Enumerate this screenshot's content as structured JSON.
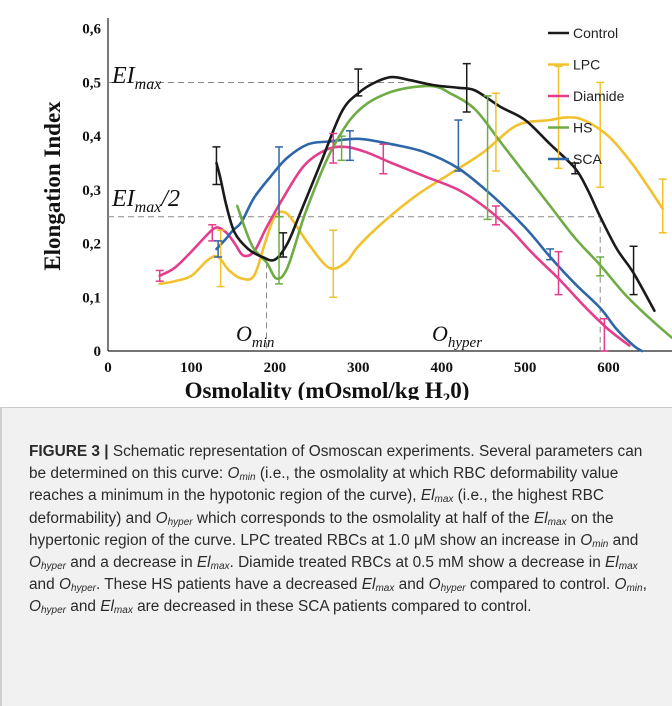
{
  "chart_data": {
    "type": "line",
    "xlabel": "Osmolality (mOsmol/kg H",
    "xlabel_sub": "2",
    "xlabel_end": "0)",
    "ylabel": "Elongation Index",
    "xlim": [
      0,
      730
    ],
    "ylim": [
      0,
      0.62
    ],
    "x_ticks": [
      "0",
      "100",
      "200",
      "300",
      "400",
      "500",
      "600"
    ],
    "y_ticks": [
      "0",
      "0,1",
      "0,2",
      "0,3",
      "0,4",
      "0,5",
      "0,6"
    ],
    "grid": false,
    "legend_position": "top-right",
    "series": [
      {
        "name": "Control",
        "color": "#1a1a1a",
        "points": [
          [
            130,
            0.35
          ],
          [
            135,
            0.32
          ],
          [
            142,
            0.27
          ],
          [
            152,
            0.22
          ],
          [
            168,
            0.19
          ],
          [
            185,
            0.175
          ],
          [
            200,
            0.17
          ],
          [
            215,
            0.2
          ],
          [
            230,
            0.255
          ],
          [
            255,
            0.35
          ],
          [
            280,
            0.445
          ],
          [
            300,
            0.48
          ],
          [
            320,
            0.5
          ],
          [
            340,
            0.51
          ],
          [
            360,
            0.505
          ],
          [
            390,
            0.495
          ],
          [
            420,
            0.49
          ],
          [
            440,
            0.485
          ],
          [
            470,
            0.455
          ],
          [
            500,
            0.43
          ],
          [
            530,
            0.385
          ],
          [
            560,
            0.34
          ],
          [
            575,
            0.3
          ],
          [
            590,
            0.25
          ],
          [
            610,
            0.19
          ],
          [
            630,
            0.145
          ],
          [
            655,
            0.075
          ]
        ],
        "error_bars": [
          [
            130,
            0.31,
            0.38
          ],
          [
            210,
            0.175,
            0.22
          ],
          [
            300,
            0.475,
            0.525
          ],
          [
            430,
            0.445,
            0.535
          ],
          [
            560,
            0.33,
            0.35
          ],
          [
            630,
            0.105,
            0.195
          ]
        ]
      },
      {
        "name": "LPC",
        "color": "#f2c12e",
        "points": [
          [
            62,
            0.125
          ],
          [
            80,
            0.13
          ],
          [
            100,
            0.14
          ],
          [
            120,
            0.17
          ],
          [
            132,
            0.175
          ],
          [
            145,
            0.15
          ],
          [
            160,
            0.135
          ],
          [
            175,
            0.14
          ],
          [
            188,
            0.2
          ],
          [
            200,
            0.25
          ],
          [
            215,
            0.255
          ],
          [
            240,
            0.2
          ],
          [
            265,
            0.155
          ],
          [
            285,
            0.165
          ],
          [
            300,
            0.195
          ],
          [
            330,
            0.24
          ],
          [
            370,
            0.29
          ],
          [
            410,
            0.33
          ],
          [
            450,
            0.37
          ],
          [
            490,
            0.42
          ],
          [
            530,
            0.43
          ],
          [
            550,
            0.435
          ],
          [
            570,
            0.43
          ],
          [
            600,
            0.4
          ],
          [
            630,
            0.345
          ],
          [
            665,
            0.265
          ]
        ],
        "error_bars": [
          [
            135,
            0.12,
            0.225
          ],
          [
            270,
            0.1,
            0.225
          ],
          [
            465,
            0.335,
            0.48
          ],
          [
            540,
            0.34,
            0.53
          ],
          [
            590,
            0.305,
            0.5
          ],
          [
            665,
            0.22,
            0.32
          ]
        ]
      },
      {
        "name": "Diamide",
        "color": "#e43d8c",
        "points": [
          [
            62,
            0.14
          ],
          [
            80,
            0.155
          ],
          [
            100,
            0.185
          ],
          [
            118,
            0.215
          ],
          [
            130,
            0.23
          ],
          [
            142,
            0.22
          ],
          [
            152,
            0.2
          ],
          [
            162,
            0.178
          ],
          [
            175,
            0.185
          ],
          [
            190,
            0.23
          ],
          [
            210,
            0.285
          ],
          [
            235,
            0.345
          ],
          [
            262,
            0.375
          ],
          [
            285,
            0.38
          ],
          [
            310,
            0.37
          ],
          [
            340,
            0.35
          ],
          [
            380,
            0.325
          ],
          [
            420,
            0.3
          ],
          [
            450,
            0.27
          ],
          [
            480,
            0.23
          ],
          [
            510,
            0.18
          ],
          [
            540,
            0.135
          ],
          [
            570,
            0.085
          ],
          [
            600,
            0.04
          ],
          [
            625,
            0.01
          ]
        ],
        "error_bars": [
          [
            62,
            0.13,
            0.15
          ],
          [
            125,
            0.205,
            0.235
          ],
          [
            270,
            0.35,
            0.405
          ],
          [
            330,
            0.33,
            0.385
          ],
          [
            465,
            0.235,
            0.27
          ],
          [
            540,
            0.105,
            0.185
          ],
          [
            595,
            0.0,
            0.06
          ]
        ]
      },
      {
        "name": "HS",
        "color": "#6fac46",
        "points": [
          [
            155,
            0.27
          ],
          [
            165,
            0.225
          ],
          [
            175,
            0.19
          ],
          [
            190,
            0.165
          ],
          [
            202,
            0.135
          ],
          [
            215,
            0.155
          ],
          [
            235,
            0.25
          ],
          [
            255,
            0.33
          ],
          [
            270,
            0.38
          ],
          [
            290,
            0.43
          ],
          [
            310,
            0.46
          ],
          [
            335,
            0.48
          ],
          [
            360,
            0.49
          ],
          [
            390,
            0.493
          ],
          [
            410,
            0.48
          ],
          [
            440,
            0.45
          ],
          [
            470,
            0.39
          ],
          [
            500,
            0.33
          ],
          [
            530,
            0.27
          ],
          [
            560,
            0.21
          ],
          [
            590,
            0.16
          ],
          [
            620,
            0.105
          ],
          [
            650,
            0.06
          ],
          [
            680,
            0.02
          ],
          [
            700,
            0.0
          ]
        ],
        "error_bars": [
          [
            205,
            0.125,
            0.25
          ],
          [
            280,
            0.355,
            0.4
          ],
          [
            455,
            0.245,
            0.475
          ],
          [
            590,
            0.14,
            0.175
          ]
        ]
      },
      {
        "name": "SCA",
        "color": "#2f66a8",
        "points": [
          [
            130,
            0.19
          ],
          [
            142,
            0.21
          ],
          [
            150,
            0.225
          ],
          [
            160,
            0.24
          ],
          [
            175,
            0.285
          ],
          [
            195,
            0.325
          ],
          [
            215,
            0.36
          ],
          [
            240,
            0.385
          ],
          [
            265,
            0.39
          ],
          [
            300,
            0.395
          ],
          [
            340,
            0.385
          ],
          [
            380,
            0.37
          ],
          [
            420,
            0.34
          ],
          [
            460,
            0.29
          ],
          [
            500,
            0.23
          ],
          [
            530,
            0.175
          ],
          [
            560,
            0.125
          ],
          [
            590,
            0.08
          ],
          [
            610,
            0.04
          ],
          [
            630,
            0.01
          ],
          [
            640,
            0.0
          ]
        ],
        "error_bars": [
          [
            132,
            0.175,
            0.205
          ],
          [
            205,
            0.25,
            0.38
          ],
          [
            290,
            0.355,
            0.41
          ],
          [
            420,
            0.335,
            0.43
          ],
          [
            530,
            0.17,
            0.19
          ]
        ]
      }
    ],
    "annotations": {
      "ei_max_main": "EI",
      "ei_max_sub": "max",
      "ei_max_value": 0.5,
      "ei_half_main": "EI",
      "ei_half_sub": "max",
      "ei_half_suffix": "/2",
      "ei_half_value": 0.25,
      "o_min_main": "O",
      "o_min_sub": "min",
      "o_min_value": 190,
      "o_hyper_main": "O",
      "o_hyper_sub": "hyper",
      "o_hyper_value": 590
    }
  },
  "caption": {
    "label": "FIGURE 3 |",
    "text_html": " Schematic representation of Osmoscan experiments. Several parameters can be determined on this curve: <i>O<sub>min</sub></i> (i.e., the osmolality at which RBC deformability value reaches a minimum in the hypotonic region of the curve), <i>El<sub>max</sub></i> (i.e., the highest RBC deformability) and <i>O<sub>hyper</sub></i> which corresponds to the osmolality at half of the <i>El<sub>max</sub></i> on the hypertonic region of the curve. LPC treated RBCs at 1.0 μM show an increase in <i>O<sub>min</sub></i> and <i>O<sub>hyper</sub></i> and a decrease in <i>El<sub>max</sub></i>. Diamide treated RBCs at 0.5 mM show a decrease in <i>El<sub>max</sub></i> and <i>O<sub>hyper</sub></i>. These HS patients have a decreased <i>El<sub>max</sub></i> and <i>O<sub>hyper</sub></i> compared to control. <i>O<sub>min</sub></i>, <i>O<sub>hyper</sub></i> and <i>El<sub>max</sub></i> are decreased in these SCA patients compared to control."
  }
}
